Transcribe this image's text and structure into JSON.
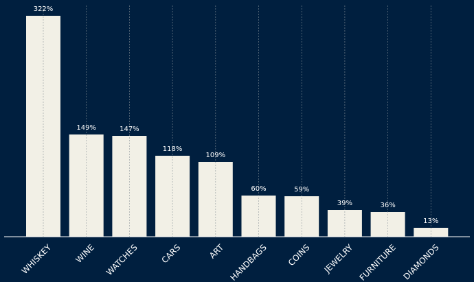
{
  "chart_data": {
    "type": "bar",
    "categories": [
      "WHISKEY",
      "WINE",
      "WATCHES",
      "CARS",
      "ART",
      "HANDBAGS",
      "COINS",
      "JEWELRY",
      "FURNITURE",
      "DIAMONDS"
    ],
    "values": [
      322,
      149,
      147,
      118,
      109,
      60,
      59,
      39,
      36,
      13
    ],
    "value_labels": [
      "322%",
      "149%",
      "147%",
      "118%",
      "109%",
      "60%",
      "59%",
      "39%",
      "36%",
      "13%"
    ],
    "title": "",
    "xlabel": "",
    "ylabel": "",
    "ylim": [
      0,
      338
    ],
    "grid": "vertical dashed",
    "colors": {
      "background": "#001f3f",
      "bar": "#f2f0e6",
      "grid": "#8a9499",
      "axis": "#ffffff",
      "text": "#ffffff"
    }
  }
}
